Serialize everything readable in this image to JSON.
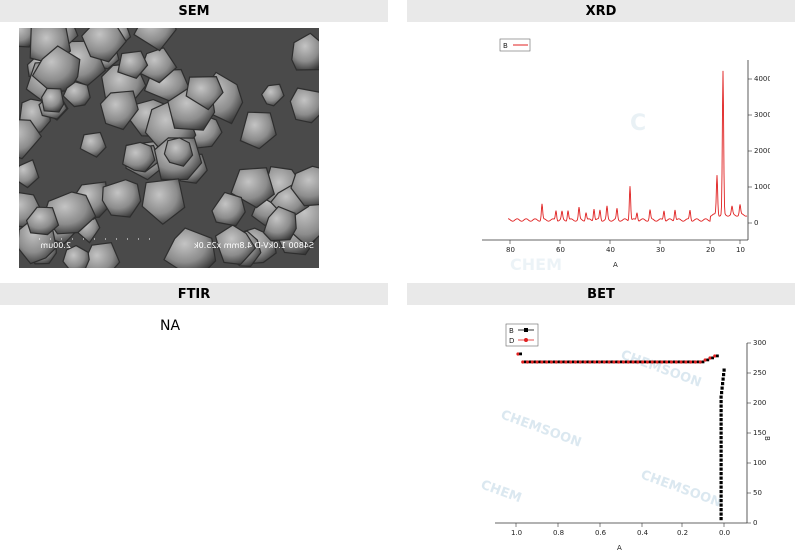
{
  "headers": {
    "sem": "SEM",
    "xrd": "XRD",
    "ftir": "FTIR",
    "bet": "BET"
  },
  "sem": {
    "scale_label": "2.00um",
    "caption": "S4800 1.0kV-D 4.8mm x25.0k"
  },
  "ftir": {
    "value": "NA"
  },
  "xrd": {
    "chart_data": {
      "type": "line",
      "title": "",
      "xlabel": "A",
      "ylabel": "",
      "x_ticks": [
        "80",
        "60",
        "40",
        "30",
        "20",
        "10"
      ],
      "y_ticks": [
        "0",
        "1000",
        "2000",
        "3000",
        "4000"
      ],
      "legend": [
        "B"
      ],
      "series": [
        {
          "name": "B",
          "color": "#e02020"
        }
      ]
    }
  },
  "bet": {
    "chart_data": {
      "type": "scatter",
      "title": "",
      "xlabel": "A",
      "ylabel": "B",
      "x_ticks": [
        "1.0",
        "0.8",
        "0.6",
        "0.4",
        "0.2",
        "0.0"
      ],
      "y_ticks": [
        "0",
        "50",
        "100",
        "150",
        "200",
        "250",
        "300"
      ],
      "legend": [
        "B",
        "D"
      ],
      "series": [
        {
          "name": "B",
          "color": "#000000"
        },
        {
          "name": "D",
          "color": "#e02020"
        }
      ]
    }
  },
  "watermark": "CHEMSOON"
}
